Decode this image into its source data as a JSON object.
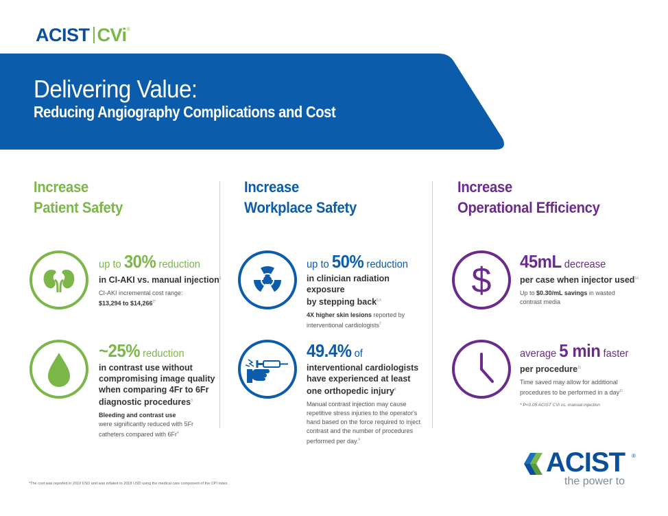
{
  "top_logo": {
    "acist": "ACIST",
    "cvi": "CVi",
    "reg": "®"
  },
  "banner": {
    "title": "Delivering Value:",
    "subtitle": "Reducing Angiography Complications and Cost"
  },
  "columns": {
    "patient": {
      "heading_line1": "Increase",
      "heading_line2": "Patient Safety",
      "stat1": {
        "pre": "up to ",
        "big": "30%",
        "post": " reduction",
        "bold": "in CI-AKI vs. manual injection",
        "bold_sup": "1",
        "small1": "CI-AKI incremental cost range:",
        "small2": "$13,294 to $14,266",
        "small2_sup": "2*"
      },
      "stat2": {
        "big": "~25%",
        "post": " reduction",
        "bold1": "in contrast use without",
        "bold2": "compromising image quality",
        "bold3": "when comparing 4Fr to 6Fr",
        "bold4": "diagnostic procedures",
        "bold4_sup": "3",
        "small_bold": "Bleeding and contrast use",
        "small1": "were significantly reduced with 5Fr",
        "small2": "catheters compared with 6Fr",
        "small2_sup": "4"
      }
    },
    "workplace": {
      "heading_line1": "Increase",
      "heading_line2": "Workplace Safety",
      "stat1": {
        "pre": "up to ",
        "big": "50%",
        "post": " reduction",
        "bold1": "in clinician radiation exposure",
        "bold2": "by stepping back",
        "bold2_sup": "5,6",
        "small_bold": "4X higher skin lesions",
        "small1": " reported by",
        "small2": "interventional cardiologists",
        "small2_sup": "7"
      },
      "stat2": {
        "big": "49.4%",
        "post": " of",
        "bold1": "interventional cardiologists",
        "bold2": "have experienced at least",
        "bold3": "one orthopedic injury",
        "bold3_sup": "8",
        "small1": "Manual contrast injection may cause",
        "small2": "repetitive stress injuries to the operator's",
        "small3": "hand based on the force required to inject",
        "small4": "contrast and the number of procedures",
        "small5": "performed per day.",
        "small5_sup": "9"
      }
    },
    "efficiency": {
      "heading_line1": "Increase",
      "heading_line2": "Operational Efficiency",
      "stat1": {
        "big": "45mL",
        "post": " decrease",
        "bold": "per case when injector used",
        "bold_sup": "10",
        "small_pre": "Up to ",
        "small_bold": "$0.30/mL savings",
        "small_post": " in wasted",
        "small2": "contrast media"
      },
      "stat2": {
        "pre": "average ",
        "big": "5 min",
        "post": " faster",
        "bold": "per procedure",
        "bold_sup": "11",
        "small1": "Time saved may allow for additional",
        "small2": "procedures to be performed in a day",
        "small2_sup": "11",
        "pnote": "* P<0.05 ACIST CVi vs. manual injection"
      }
    }
  },
  "icons": {
    "kidney": "kidney-icon",
    "drop": "contrast-drop-icon",
    "radiation": "radiation-icon",
    "injury": "hand-injury-icon",
    "dollar": "dollar-icon",
    "clock": "clock-icon"
  },
  "dollar_glyph": "$",
  "footnote": "*The cost was reported in 2010 USD and was inflated to 2018 USD using the medical care component of the CPI index.",
  "bottom_logo": {
    "word": "ACIST",
    "reg": "®",
    "tagline": "the power to"
  },
  "colors": {
    "brand_blue": "#0b5cab",
    "green": "#7ab648",
    "purple": "#6a2b8c",
    "banner": "#0b5cab"
  }
}
